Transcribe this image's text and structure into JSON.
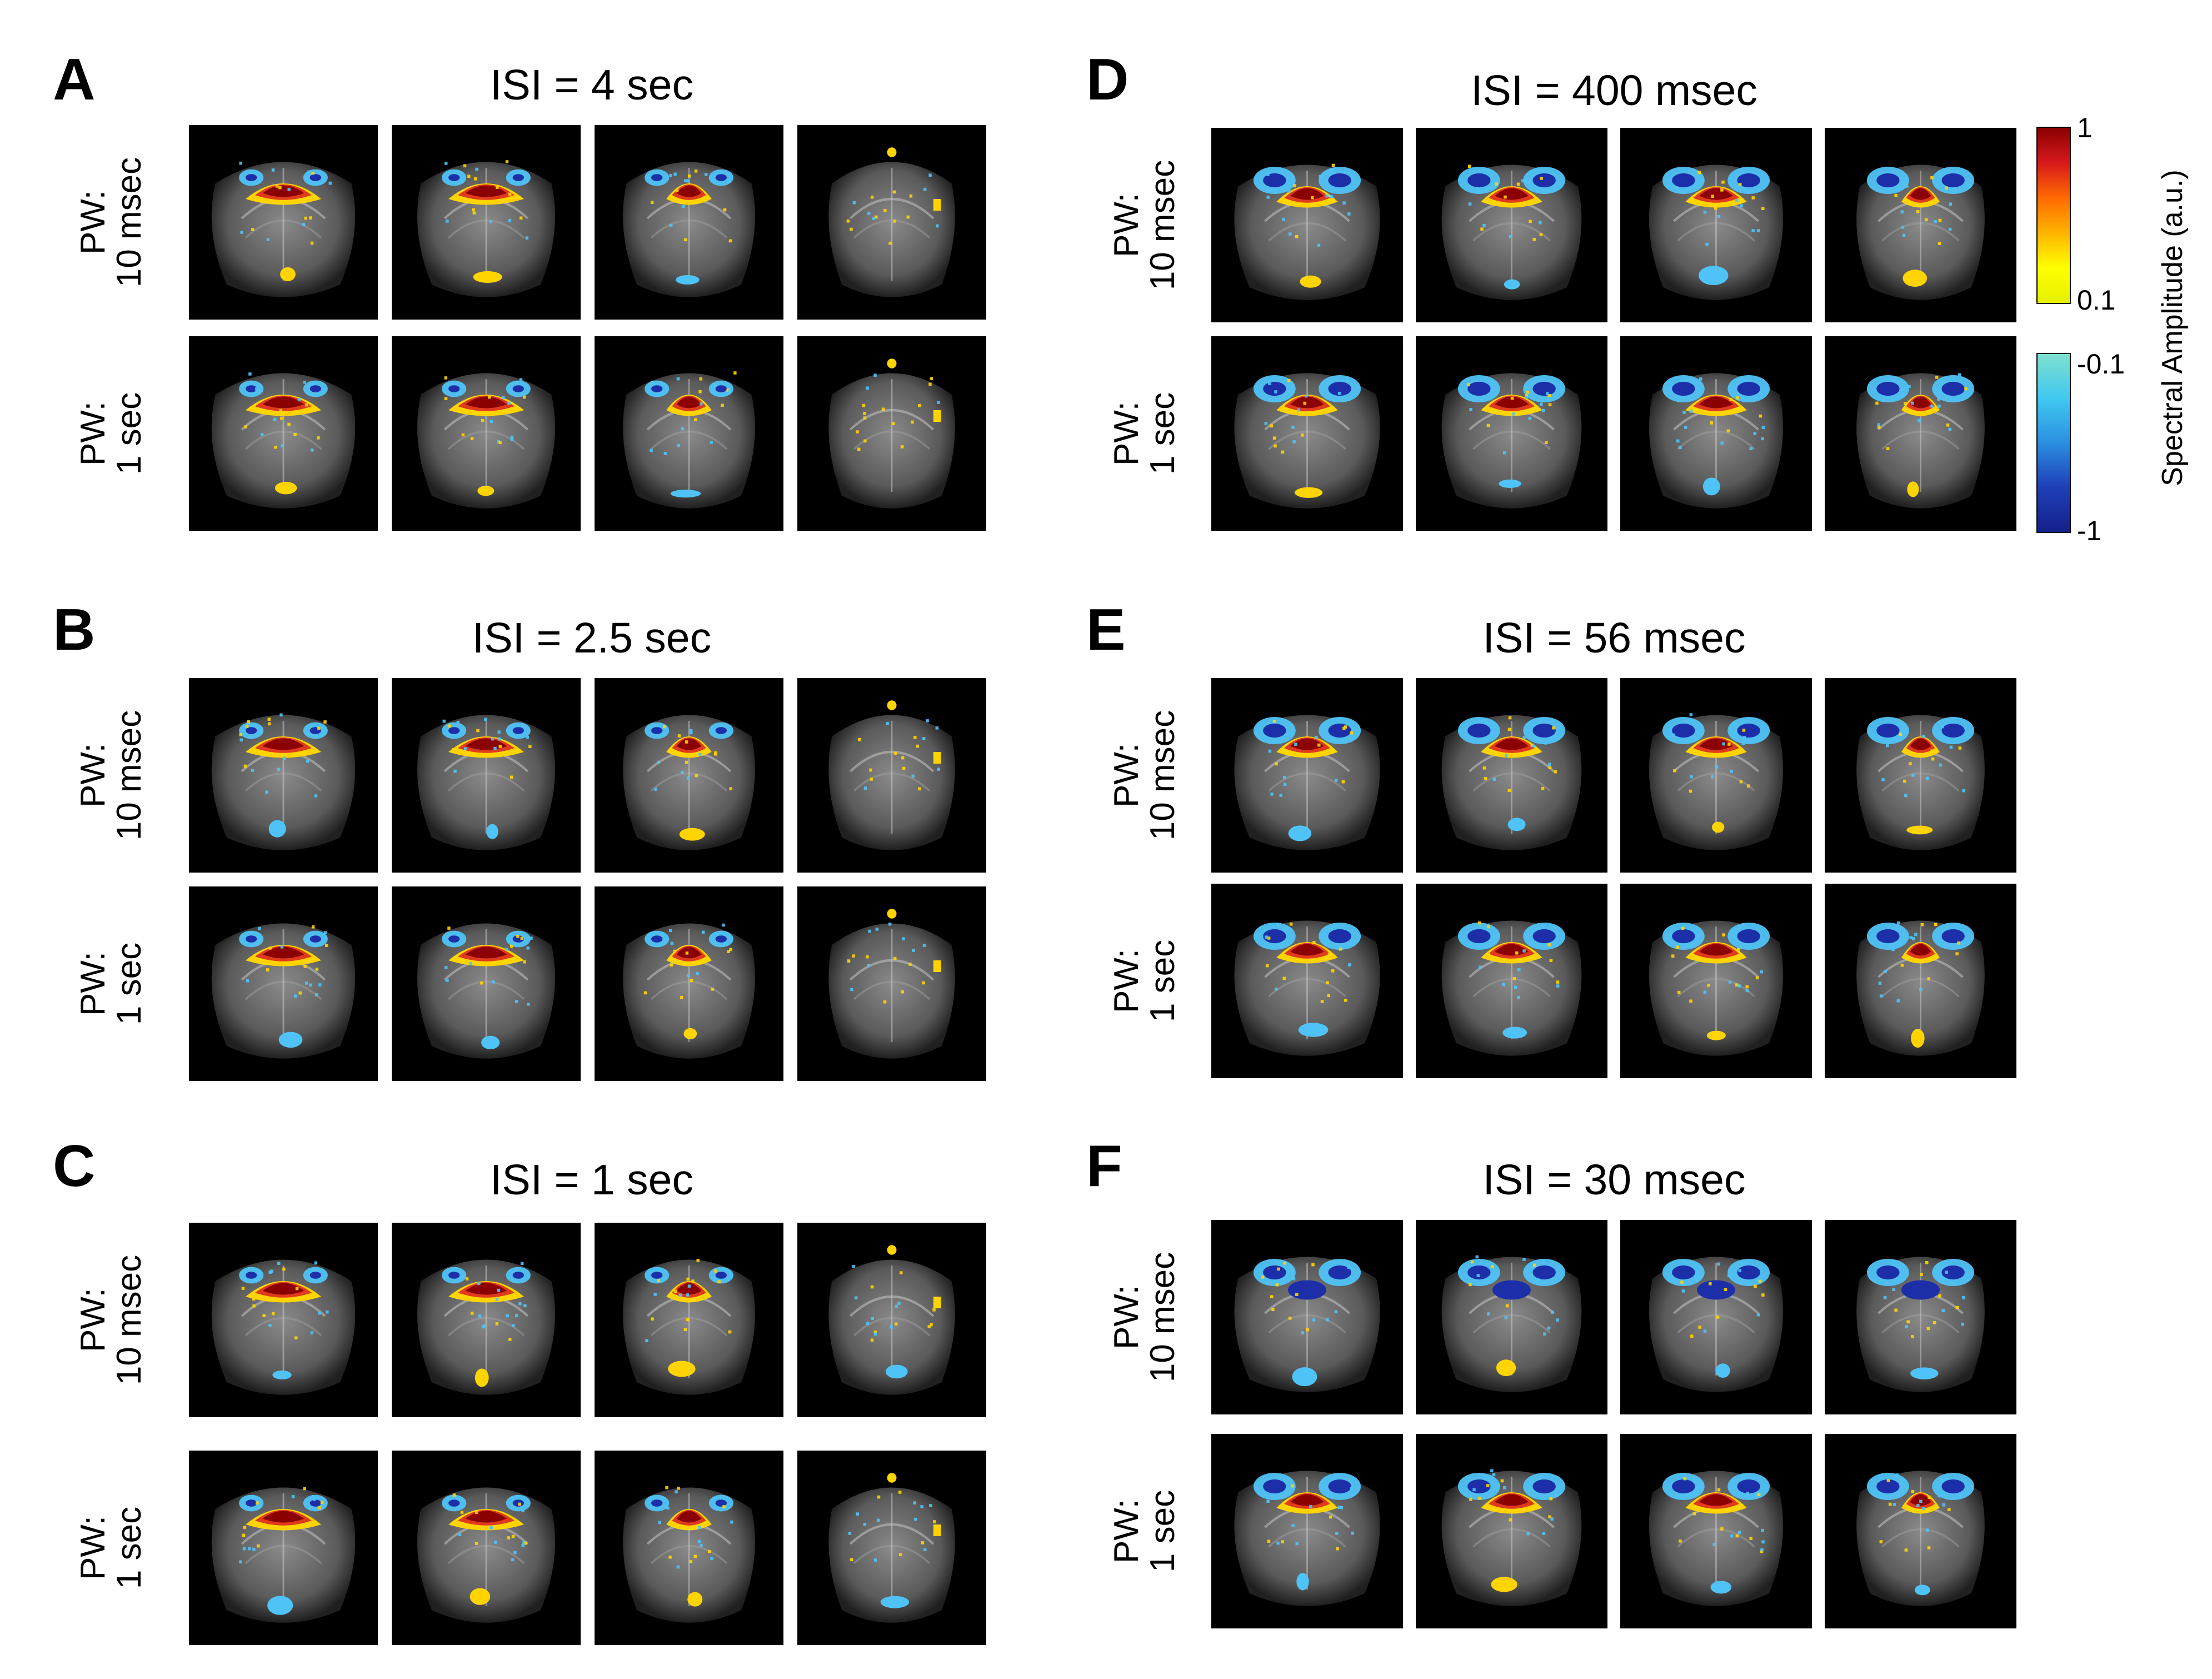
{
  "panels": [
    {
      "letter": "A",
      "title": "ISI = 4 sec",
      "rows": [
        {
          "label": [
            "PW:",
            "10 msec"
          ]
        },
        {
          "label": [
            "PW:",
            "1 sec"
          ]
        }
      ]
    },
    {
      "letter": "B",
      "title": "ISI = 2.5 sec",
      "rows": [
        {
          "label": [
            "PW:",
            "10 msec"
          ]
        },
        {
          "label": [
            "PW:",
            "1 sec"
          ]
        }
      ]
    },
    {
      "letter": "C",
      "title": "ISI = 1 sec",
      "rows": [
        {
          "label": [
            "PW:",
            "10 msec"
          ]
        },
        {
          "label": [
            "PW:",
            "1 sec"
          ]
        }
      ]
    },
    {
      "letter": "D",
      "title": "ISI = 400 msec",
      "rows": [
        {
          "label": [
            "PW:",
            "10 msec"
          ]
        },
        {
          "label": [
            "PW:",
            "1 sec"
          ]
        }
      ]
    },
    {
      "letter": "E",
      "title": "ISI = 56 msec",
      "rows": [
        {
          "label": [
            "PW:",
            "10 msec"
          ]
        },
        {
          "label": [
            "PW:",
            "1 sec"
          ]
        }
      ]
    },
    {
      "letter": "F",
      "title": "ISI = 30 msec",
      "rows": [
        {
          "label": [
            "PW:",
            "10 msec"
          ]
        },
        {
          "label": [
            "PW:",
            "1 sec"
          ]
        }
      ]
    }
  ],
  "colorbar": {
    "label": "Spectral Amplitude (a.u.)",
    "positive": {
      "top_tick": "1",
      "bottom_tick": "0.1",
      "colors": [
        "#8b0000",
        "#d7191c",
        "#ff6a00",
        "#ffb300",
        "#ffff00",
        "#e6f000"
      ]
    },
    "negative": {
      "top_tick": "-0.1",
      "bottom_tick": "-1",
      "colors": [
        "#7fe0d0",
        "#40c8f0",
        "#2b8fe0",
        "#1f3fb8",
        "#14208a"
      ]
    }
  },
  "colors": {
    "positive_core": "#8b0000",
    "positive_mid": "#e03a1e",
    "positive_edge": "#ffd400",
    "negative_core": "#1c2fa8",
    "negative_edge": "#4fc3f7"
  }
}
